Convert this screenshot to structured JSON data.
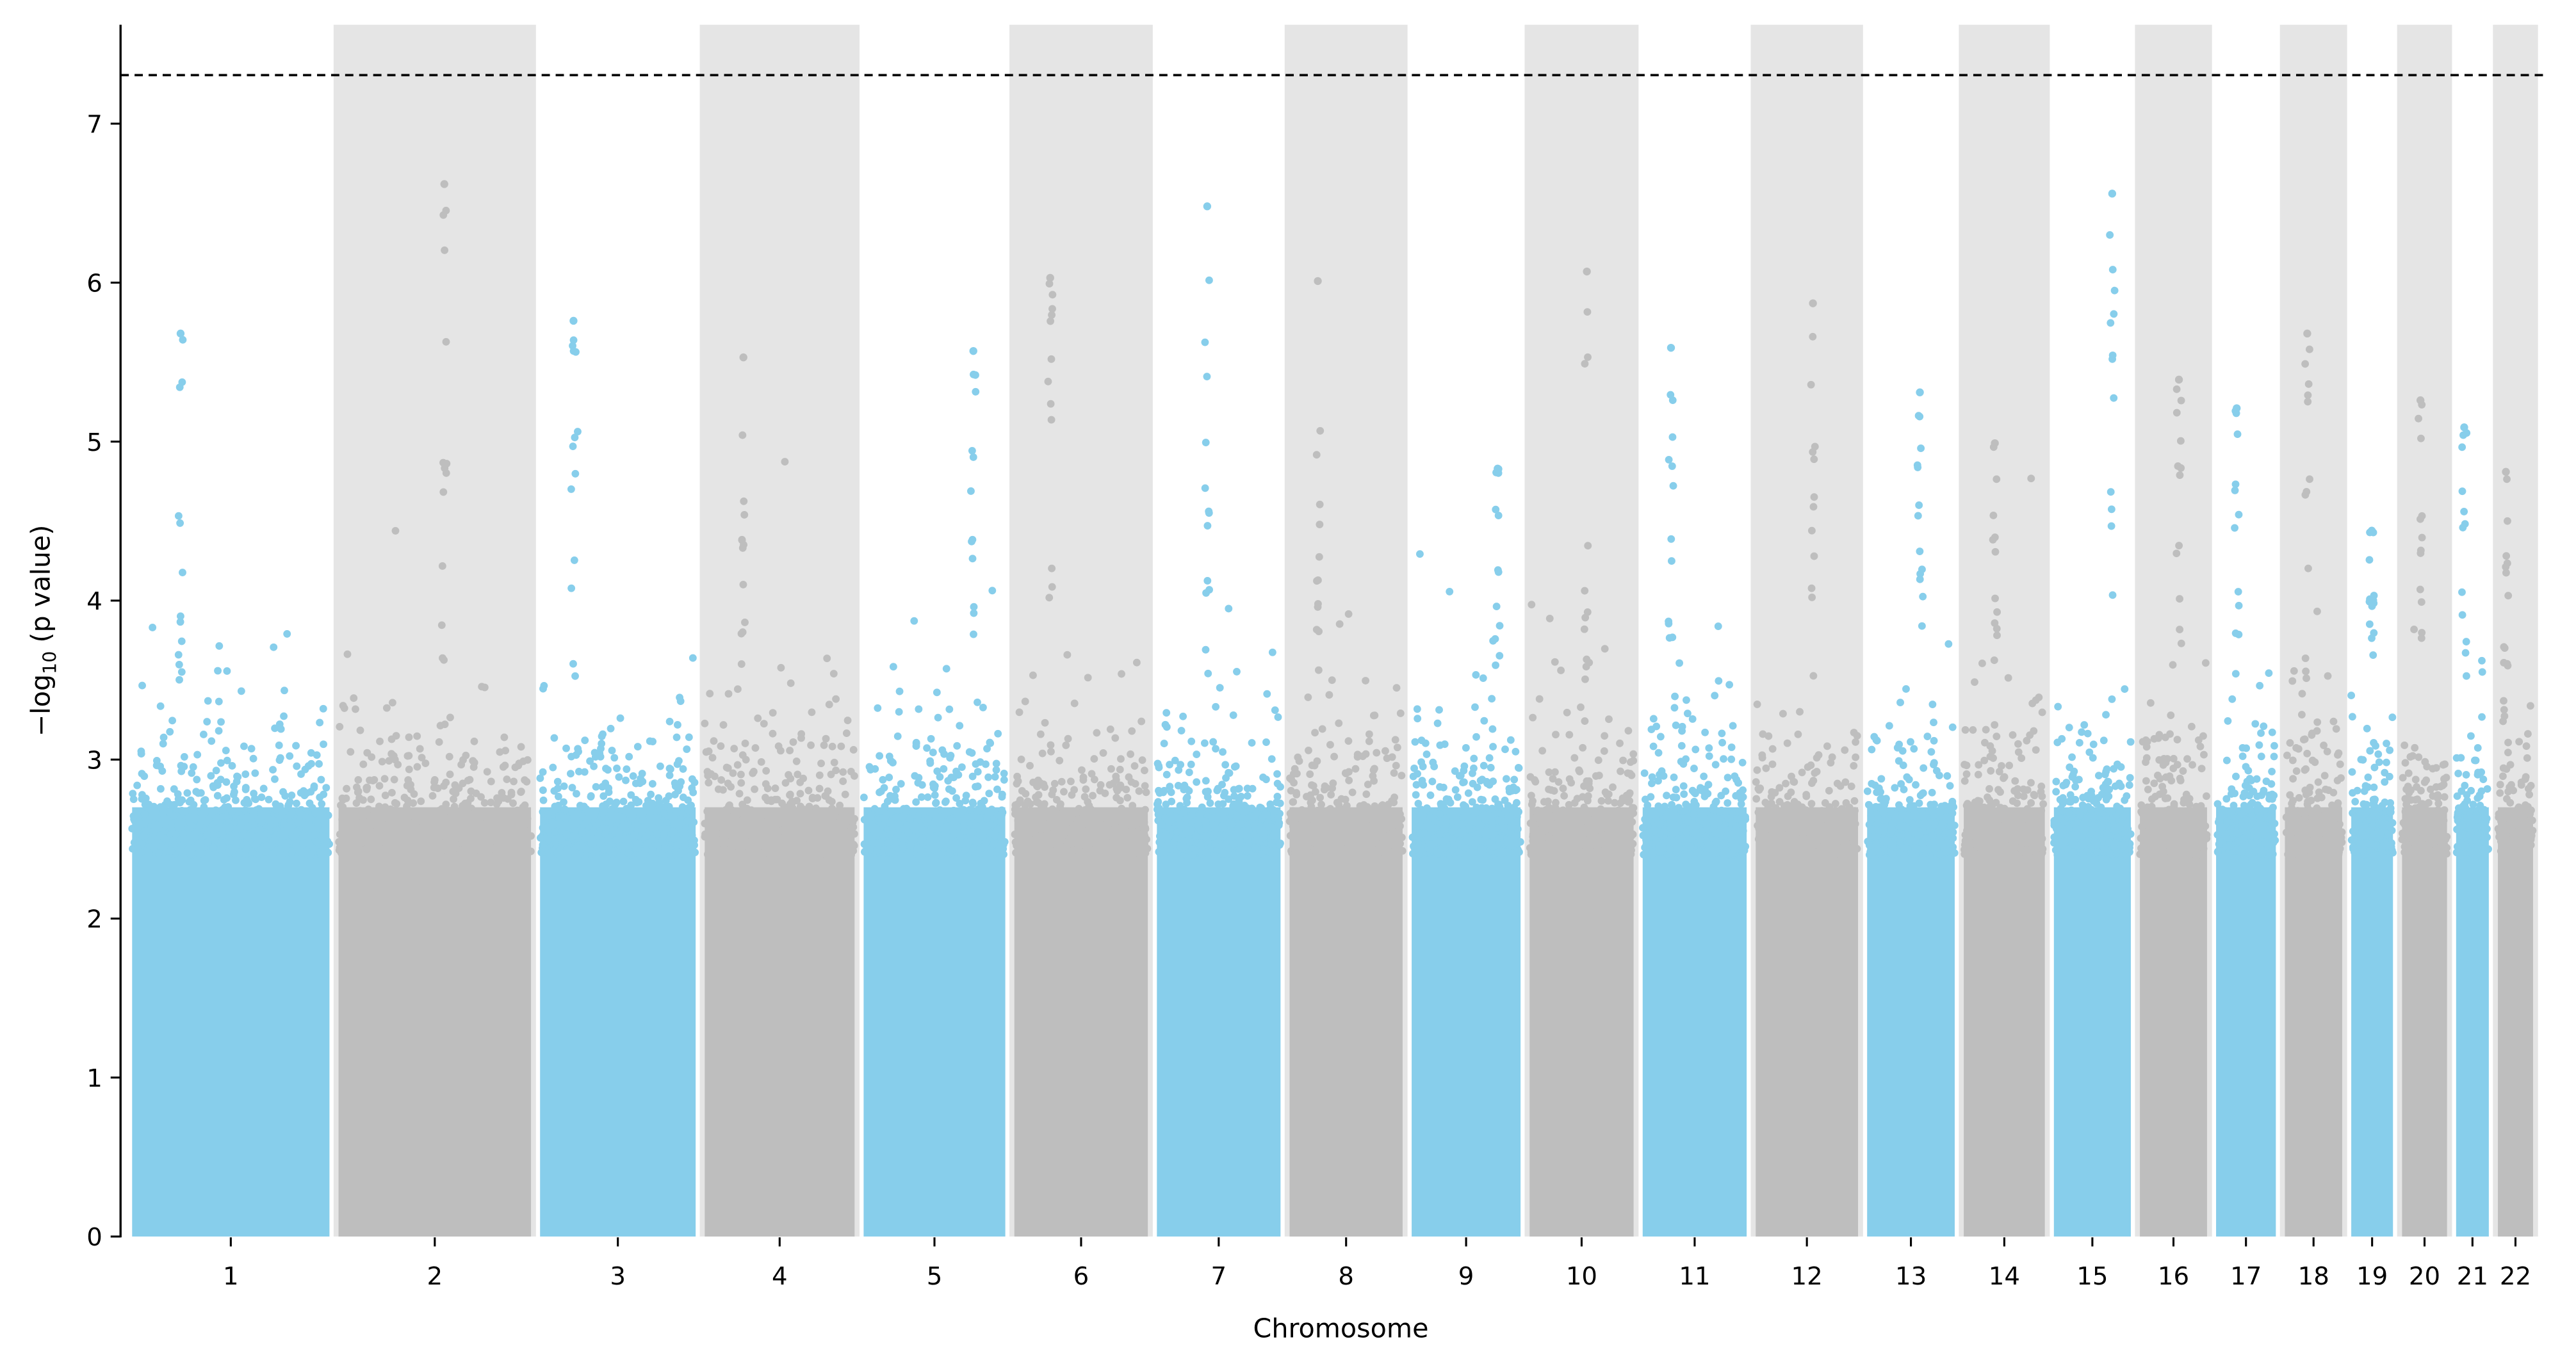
{
  "chart_data": {
    "type": "scatter",
    "subtype": "manhattan",
    "xlabel": "Chromosome",
    "ylabel_parts": {
      "prefix": "−log",
      "sub": "10",
      "suffix": " (p value)"
    },
    "ylim": [
      0,
      7.6
    ],
    "yticks": [
      "0",
      "1",
      "2",
      "3",
      "4",
      "5",
      "6",
      "7"
    ],
    "significance_threshold": 7.3,
    "colors": {
      "odd": "#87CEEB",
      "even": "#BEBEBE",
      "band": "#E5E5E5",
      "threshold": "#000000"
    },
    "chromosomes": [
      {
        "label": "1",
        "length_mb": 249,
        "peak": 5.68
      },
      {
        "label": "2",
        "length_mb": 243,
        "peak": 6.62
      },
      {
        "label": "3",
        "length_mb": 198,
        "peak": 5.76
      },
      {
        "label": "4",
        "length_mb": 191,
        "peak": 5.53
      },
      {
        "label": "5",
        "length_mb": 181,
        "peak": 5.57
      },
      {
        "label": "6",
        "length_mb": 171,
        "peak": 6.03
      },
      {
        "label": "7",
        "length_mb": 159,
        "peak": 6.48
      },
      {
        "label": "8",
        "length_mb": 146,
        "peak": 6.01
      },
      {
        "label": "9",
        "length_mb": 141,
        "peak": 4.83
      },
      {
        "label": "10",
        "length_mb": 135,
        "peak": 6.07
      },
      {
        "label": "11",
        "length_mb": 135,
        "peak": 5.59
      },
      {
        "label": "12",
        "length_mb": 133,
        "peak": 5.87
      },
      {
        "label": "13",
        "length_mb": 115,
        "peak": 5.31
      },
      {
        "label": "14",
        "length_mb": 107,
        "peak": 4.99
      },
      {
        "label": "15",
        "length_mb": 102,
        "peak": 6.56
      },
      {
        "label": "16",
        "length_mb": 90,
        "peak": 5.39
      },
      {
        "label": "17",
        "length_mb": 81,
        "peak": 5.21
      },
      {
        "label": "18",
        "length_mb": 78,
        "peak": 5.68
      },
      {
        "label": "19",
        "length_mb": 59,
        "peak": 4.44
      },
      {
        "label": "20",
        "length_mb": 63,
        "peak": 5.26
      },
      {
        "label": "21",
        "length_mb": 48,
        "peak": 5.09
      },
      {
        "label": "22",
        "length_mb": 51,
        "peak": 4.81
      }
    ]
  }
}
